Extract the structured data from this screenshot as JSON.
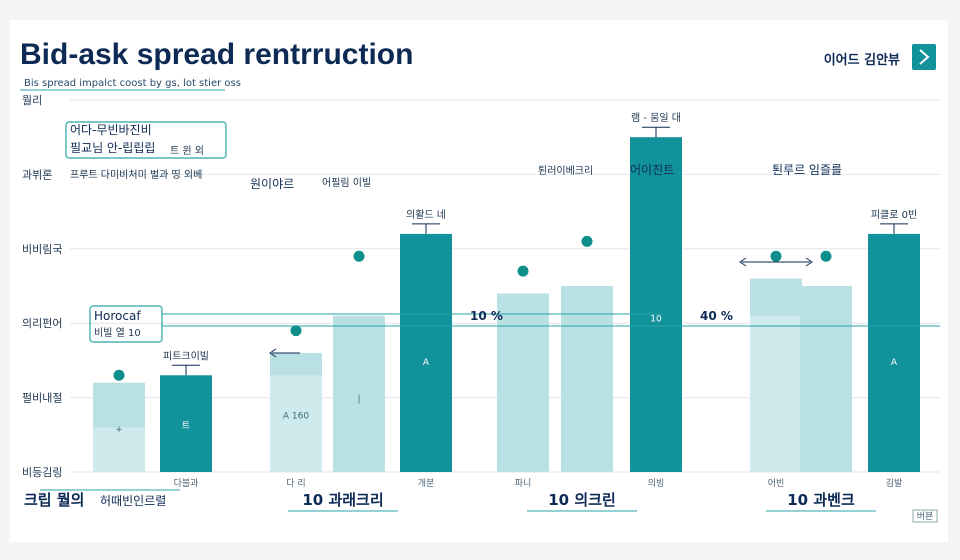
{
  "header": {
    "title": "Bid-ask spread rentrruction",
    "subtitle": "Bis spread impalct coost by gs, lot stier oss",
    "action_label": "이어드 김안뷰",
    "action_icon": "chevron-right-icon"
  },
  "colors": {
    "dark_bar": "#12929a",
    "light_bar": "#b9e0e3",
    "lighter_bar": "#d6eef0",
    "dot": "#0f8f8c",
    "line": "#2aa3a8",
    "title": "#0d2a55"
  },
  "chart_data": {
    "type": "bar",
    "y_ticks": [
      "뭘리",
      "과뷔론",
      "비비림국",
      "의리펀어",
      "펄비내절",
      "비등김링"
    ],
    "ylim": [
      0,
      5
    ],
    "bars": [
      {
        "x": 1,
        "value": 1.2,
        "color": "light",
        "overlay": 0.6,
        "inner": "+",
        "label": "",
        "cat": ""
      },
      {
        "x": 2,
        "value": 1.3,
        "color": "dark",
        "inner": "트",
        "label": "피트크이빌",
        "cat": "다블과"
      },
      {
        "x": 3,
        "value": 1.6,
        "color": "light",
        "overlay": 1.3,
        "inner": "A 160",
        "label": "",
        "cat": "다 리"
      },
      {
        "x": 4,
        "value": 2.1,
        "color": "light",
        "inner": "|",
        "label": "",
        "cat": ""
      },
      {
        "x": 5,
        "value": 3.2,
        "color": "dark",
        "inner": "A",
        "label": "의활드 네",
        "cat": "개분"
      },
      {
        "x": 6,
        "value": 2.4,
        "color": "light",
        "inner": "",
        "label": "",
        "cat": "파니"
      },
      {
        "x": 7,
        "value": 2.5,
        "color": "light",
        "inner": "",
        "label": "",
        "cat": ""
      },
      {
        "x": 8,
        "value": 4.5,
        "color": "dark",
        "inner": "10",
        "label": "램 - 뭄일 대",
        "cat": "의빙"
      },
      {
        "x": 9,
        "value": 2.6,
        "color": "light",
        "overlay": 2.1,
        "inner": "",
        "label": "",
        "cat": "어빈"
      },
      {
        "x": 10,
        "value": 2.5,
        "color": "light",
        "inner": "",
        "label": "",
        "cat": ""
      },
      {
        "x": 11,
        "value": 3.2,
        "color": "dark",
        "inner": "A",
        "label": "피클로 0빈",
        "cat": "김발"
      }
    ],
    "dots": [
      {
        "x": 1,
        "value": 1.3
      },
      {
        "x": 3,
        "value": 1.9
      },
      {
        "x": 4,
        "value": 2.9
      },
      {
        "x": 6,
        "value": 2.7
      },
      {
        "x": 7,
        "value": 3.1
      },
      {
        "x": 9,
        "value": 2.9
      },
      {
        "x": 10,
        "value": 2.9
      }
    ],
    "percent_labels": [
      {
        "text": "10 %",
        "after_bar": 5
      },
      {
        "text": "40 %",
        "after_bar": 8
      }
    ],
    "group_labels": [
      "10 과래크리",
      "10 의크린",
      "10 과벤크"
    ],
    "annotations": [
      {
        "text": "어다-무빈바진비",
        "box": true
      },
      {
        "text": "필교님 안-립립립",
        "box": true
      },
      {
        "text": "트 윈 외"
      },
      {
        "text": "프루트 다미비처미 벌과 띵 외베"
      },
      {
        "text": "원이야르"
      },
      {
        "text": "어필림 이빌"
      },
      {
        "text": "퇸러이베크리"
      },
      {
        "text": "어이진트"
      },
      {
        "text": "퇸루르 임즐를"
      },
      {
        "text": "Horocaf",
        "box": true
      },
      {
        "text": "비빌 열 10",
        "box": true
      }
    ],
    "bottom_left": [
      "크립 뭘의",
      "허때빈인르렬"
    ],
    "footer_badge": "버뵨",
    "xlabel": "",
    "ylabel": ""
  }
}
